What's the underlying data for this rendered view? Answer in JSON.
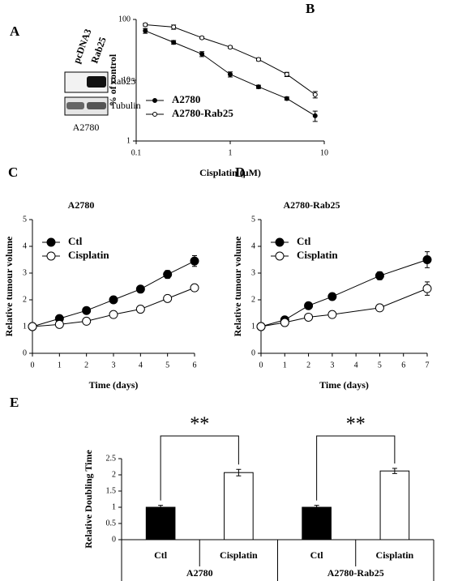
{
  "blot": {
    "panel": "A",
    "lanes": [
      "pcDNA3",
      "Rab25"
    ],
    "bands": [
      "Rab25",
      "Tubulin"
    ],
    "cell_line": "A2780"
  },
  "chart_data": [
    {
      "type": "line",
      "panel": "B",
      "xlabel": "Cisplatin (μM)",
      "ylabel": "% of control",
      "xlog": true,
      "ylog": true,
      "xlim": [
        0.1,
        10
      ],
      "ylim": [
        1,
        100
      ],
      "xticks": [
        0.1,
        1,
        10
      ],
      "yticks": [
        1,
        10,
        100
      ],
      "legend": "lower left",
      "x": [
        0.125,
        0.25,
        0.5,
        1,
        2,
        4,
        8
      ],
      "series": [
        {
          "name": "A2780",
          "color": "#000000",
          "values": [
            65,
            42,
            27,
            12.5,
            7.8,
            5,
            2.6
          ],
          "errors": [
            6,
            3,
            2.5,
            1.2,
            0.5,
            0.3,
            0.5
          ]
        },
        {
          "name": "A2780-Rab25",
          "color": "#ffffff",
          "values": [
            82,
            75,
            50,
            35,
            22,
            12.5,
            5.8
          ],
          "errors": [
            4,
            6,
            2,
            1.5,
            1.2,
            1,
            0.7
          ]
        }
      ]
    },
    {
      "type": "line",
      "panel": "C",
      "title": "A2780",
      "xlabel": "Time (days)",
      "ylabel": "Relative tumour volume",
      "xlim": [
        0,
        6
      ],
      "ylim": [
        0,
        5
      ],
      "xticks": [
        0,
        1,
        2,
        3,
        4,
        5,
        6
      ],
      "yticks": [
        0,
        1,
        2,
        3,
        4,
        5
      ],
      "legend": "upper left",
      "x": [
        0,
        1,
        2,
        3,
        4,
        5,
        6
      ],
      "series": [
        {
          "name": "Ctl",
          "color": "#000000",
          "values": [
            1,
            1.3,
            1.6,
            2.0,
            2.4,
            2.95,
            3.45
          ],
          "errors": [
            0,
            0.05,
            0.05,
            0.05,
            0.06,
            0.15,
            0.2
          ]
        },
        {
          "name": "Cisplatin",
          "color": "#ffffff",
          "values": [
            1,
            1.08,
            1.2,
            1.45,
            1.65,
            2.05,
            2.45
          ],
          "errors": [
            0,
            0.04,
            0.05,
            0.06,
            0.06,
            0.1,
            0.12
          ]
        }
      ]
    },
    {
      "type": "line",
      "panel": "D",
      "title": "A2780-Rab25",
      "xlabel": "Time (days)",
      "ylabel": "Relative tumour volume",
      "xlim": [
        0,
        7
      ],
      "ylim": [
        0,
        5
      ],
      "xticks": [
        0,
        1,
        2,
        3,
        4,
        5,
        6,
        7
      ],
      "yticks": [
        0,
        1,
        2,
        3,
        4,
        5
      ],
      "legend": "upper left",
      "x": [
        0,
        1,
        2,
        3,
        5,
        7
      ],
      "series": [
        {
          "name": "Ctl",
          "color": "#000000",
          "values": [
            1,
            1.25,
            1.78,
            2.12,
            2.9,
            3.5
          ],
          "errors": [
            0,
            0.05,
            0.05,
            0.06,
            0.15,
            0.3
          ]
        },
        {
          "name": "Cisplatin",
          "color": "#ffffff",
          "values": [
            1,
            1.15,
            1.35,
            1.45,
            1.7,
            2.42
          ],
          "errors": [
            0,
            0.05,
            0.06,
            0.1,
            0.1,
            0.25
          ]
        }
      ]
    },
    {
      "type": "bar",
      "panel": "E",
      "ylabel": "Relative Doubling Time",
      "ylim": [
        0,
        2.5
      ],
      "yticks": [
        0,
        0.5,
        1,
        1.5,
        2,
        2.5
      ],
      "categories": [
        "Ctl",
        "Cisplatin",
        "Ctl",
        "Cisplatin"
      ],
      "groups": [
        "A2780",
        "A2780-Rab25"
      ],
      "values": [
        1,
        2.07,
        1,
        2.12
      ],
      "errors": [
        0.06,
        0.1,
        0.06,
        0.08
      ],
      "colors": [
        "#000000",
        "#ffffff",
        "#000000",
        "#ffffff"
      ],
      "annotations": [
        "**",
        "**"
      ]
    }
  ]
}
